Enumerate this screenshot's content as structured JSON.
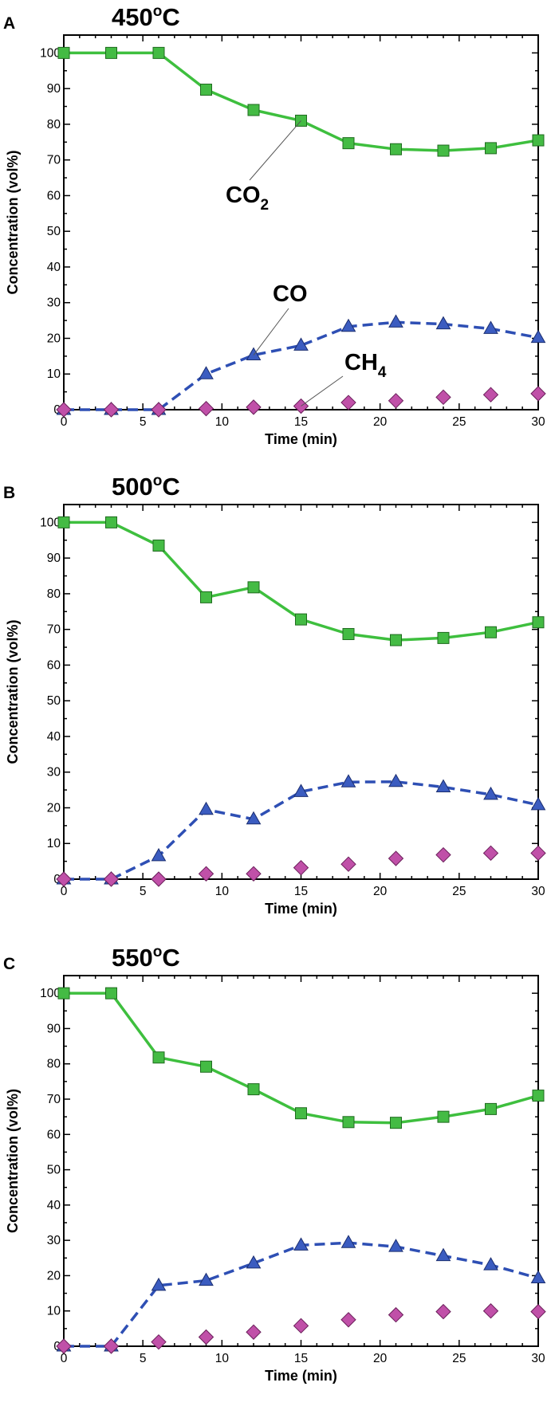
{
  "figure": {
    "x_unit_label": "Time (min)",
    "y_unit_label": "Concentration (vol%)"
  },
  "styles": {
    "CO2": {
      "color": "#3ebf3e",
      "marker_fill": "#44bb44",
      "marker_stroke": "#1f6b1f",
      "line": "solid",
      "marker": "square"
    },
    "CO": {
      "color": "#2e4fb4",
      "marker_fill": "#3b5cc0",
      "marker_stroke": "#1b2e70",
      "line": "dashed",
      "marker": "triangle"
    },
    "CH4": {
      "color": "#c050a8",
      "marker_fill": "#c050a8",
      "marker_stroke": "#6a1f5a",
      "line": "none",
      "marker": "diamond"
    }
  },
  "chart_data": [
    {
      "panel": "A",
      "type": "line",
      "title": "450",
      "title_unit": "C",
      "title_degree": "o",
      "xlabel": "Time (min)",
      "ylabel": "Concentration (vol%)",
      "xlim": [
        0,
        30
      ],
      "ylim": [
        0,
        105
      ],
      "xticks": [
        0,
        5,
        10,
        15,
        20,
        25,
        30
      ],
      "yticks": [
        0,
        10,
        20,
        30,
        40,
        50,
        60,
        70,
        80,
        90,
        100
      ],
      "x": [
        0,
        3,
        6,
        9,
        12,
        15,
        18,
        21,
        24,
        27,
        30
      ],
      "series": [
        {
          "name": "CO2",
          "values": [
            100,
            100,
            100,
            89.7,
            84,
            81,
            74.7,
            73,
            72.6,
            73.3,
            75.5
          ]
        },
        {
          "name": "CO",
          "values": [
            0,
            0,
            0,
            10,
            15.3,
            18,
            23.3,
            24.5,
            24,
            22.7,
            20.2
          ]
        },
        {
          "name": "CH4",
          "values": [
            0,
            0,
            0,
            0.3,
            0.7,
            1,
            2,
            2.5,
            3.5,
            4.2,
            4.5
          ]
        }
      ],
      "annotations": [
        {
          "series": "CO2",
          "label": "CO",
          "subscript": "2"
        },
        {
          "series": "CO",
          "label": "CO",
          "subscript": ""
        },
        {
          "series": "CH4",
          "label": "CH",
          "subscript": "4"
        }
      ]
    },
    {
      "panel": "B",
      "type": "line",
      "title": "500",
      "title_unit": "C",
      "title_degree": "o",
      "xlabel": "Time (min)",
      "ylabel": "Concentration (vol%)",
      "xlim": [
        0,
        30
      ],
      "ylim": [
        0,
        105
      ],
      "xticks": [
        0,
        5,
        10,
        15,
        20,
        25,
        30
      ],
      "yticks": [
        0,
        10,
        20,
        30,
        40,
        50,
        60,
        70,
        80,
        90,
        100
      ],
      "x": [
        0,
        3,
        6,
        9,
        12,
        15,
        18,
        21,
        24,
        27,
        30
      ],
      "series": [
        {
          "name": "CO2",
          "values": [
            100,
            100,
            93.5,
            79,
            81.8,
            72.8,
            68.7,
            67,
            67.6,
            69.2,
            72
          ]
        },
        {
          "name": "CO",
          "values": [
            0,
            0,
            6.5,
            19.5,
            16.8,
            24.5,
            27.2,
            27.3,
            25.8,
            23.7,
            20.8
          ]
        },
        {
          "name": "CH4",
          "values": [
            0,
            0,
            0,
            1.5,
            1.5,
            3.2,
            4.2,
            5.8,
            6.8,
            7.3,
            7.3
          ]
        }
      ],
      "annotations": []
    },
    {
      "panel": "C",
      "type": "line",
      "title": "550",
      "title_unit": "C",
      "title_degree": "o",
      "xlabel": "Time (min)",
      "ylabel": "Concentration (vol%)",
      "xlim": [
        0,
        30
      ],
      "ylim": [
        0,
        105
      ],
      "xticks": [
        0,
        5,
        10,
        15,
        20,
        25,
        30
      ],
      "yticks": [
        0,
        10,
        20,
        30,
        40,
        50,
        60,
        70,
        80,
        90,
        100
      ],
      "x": [
        0,
        3,
        6,
        9,
        12,
        15,
        18,
        21,
        24,
        27,
        30
      ],
      "series": [
        {
          "name": "CO2",
          "values": [
            100,
            100,
            81.8,
            79.2,
            72.8,
            66,
            63.5,
            63.3,
            65,
            67.2,
            71
          ]
        },
        {
          "name": "CO",
          "values": [
            0,
            0,
            17.2,
            18.6,
            23.5,
            28.6,
            29.3,
            28.2,
            25.6,
            23,
            19.3
          ]
        },
        {
          "name": "CH4",
          "values": [
            0,
            0,
            1.2,
            2.6,
            4,
            5.8,
            7.5,
            8.9,
            9.8,
            10,
            9.8
          ]
        }
      ],
      "annotations": []
    }
  ]
}
